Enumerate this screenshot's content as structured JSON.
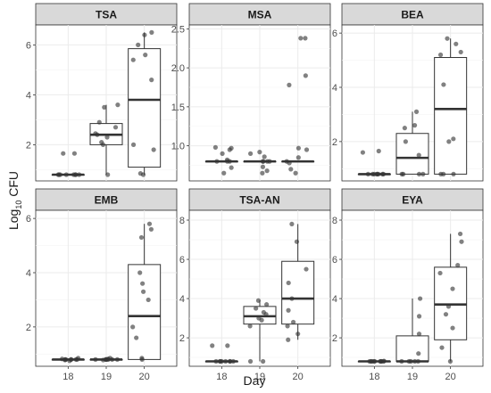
{
  "chart_data": {
    "type": "box",
    "xlabel": "Day",
    "ylabel_main": "Log",
    "ylabel_sub": "10",
    "ylabel_unit": "CFU",
    "categories": [
      "18",
      "19",
      "20"
    ],
    "panels": [
      {
        "name": "TSA",
        "ylim": [
          0.55,
          6.8
        ],
        "yticks": [
          2,
          4,
          6
        ],
        "boxes": [
          {
            "day": "18",
            "min": 0.8,
            "q1": 0.8,
            "median": 0.8,
            "q3": 0.8,
            "max": 0.8
          },
          {
            "day": "19",
            "min": 0.8,
            "q1": 2.0,
            "median": 2.4,
            "q3": 2.85,
            "max": 3.6
          },
          {
            "day": "20",
            "min": 0.8,
            "q1": 1.1,
            "median": 3.8,
            "q3": 5.85,
            "max": 6.5
          }
        ],
        "points": [
          {
            "day": "18",
            "y": [
              0.8,
              0.8,
              0.8,
              0.8,
              0.8,
              0.8,
              0.8,
              0.8,
              1.65,
              1.65
            ]
          },
          {
            "day": "19",
            "y": [
              0.8,
              2.0,
              2.1,
              2.3,
              2.4,
              2.45,
              2.7,
              2.9,
              3.5,
              3.6
            ]
          },
          {
            "day": "20",
            "y": [
              0.8,
              0.85,
              1.8,
              2.0,
              4.6,
              5.4,
              5.6,
              6.0,
              6.4,
              6.5
            ]
          }
        ]
      },
      {
        "name": "MSA",
        "ylim": [
          0.55,
          2.55
        ],
        "yticks": [
          1.0,
          1.5,
          2.0,
          2.5
        ],
        "tick_labels": [
          "1.0",
          "1.5",
          "2.0",
          "2.5"
        ],
        "boxes": [
          {
            "day": "18",
            "min": 0.8,
            "q1": 0.8,
            "median": 0.8,
            "q3": 0.8,
            "max": 0.8
          },
          {
            "day": "19",
            "min": 0.8,
            "q1": 0.8,
            "median": 0.8,
            "q3": 0.8,
            "max": 0.8
          },
          {
            "day": "20",
            "min": 0.8,
            "q1": 0.8,
            "median": 0.8,
            "q3": 0.8,
            "max": 0.8
          }
        ],
        "points": [
          {
            "day": "18",
            "y": [
              0.65,
              0.72,
              0.8,
              0.82,
              0.9,
              0.95,
              0.97,
              0.98,
              0.8,
              0.8
            ]
          },
          {
            "day": "19",
            "y": [
              0.65,
              0.68,
              0.73,
              0.8,
              0.8,
              0.86,
              0.9,
              0.92,
              0.8,
              0.8
            ]
          },
          {
            "day": "20",
            "y": [
              0.65,
              0.7,
              0.78,
              0.8,
              0.85,
              0.95,
              0.97,
              1.78,
              1.9,
              2.38,
              2.38
            ]
          }
        ]
      },
      {
        "name": "BEA",
        "ylim": [
          0.55,
          6.3
        ],
        "yticks": [
          2,
          4,
          6
        ],
        "boxes": [
          {
            "day": "18",
            "min": 0.8,
            "q1": 0.8,
            "median": 0.8,
            "q3": 0.8,
            "max": 0.8
          },
          {
            "day": "19",
            "min": 0.8,
            "q1": 0.8,
            "median": 1.4,
            "q3": 2.3,
            "max": 3.1
          },
          {
            "day": "20",
            "min": 0.8,
            "q1": 0.8,
            "median": 3.2,
            "q3": 5.1,
            "max": 5.8
          }
        ],
        "points": [
          {
            "day": "18",
            "y": [
              0.8,
              0.8,
              0.8,
              0.8,
              0.8,
              0.8,
              0.8,
              0.8,
              1.6,
              1.65
            ]
          },
          {
            "day": "19",
            "y": [
              0.8,
              0.8,
              0.8,
              0.8,
              1.5,
              2.0,
              2.5,
              2.6,
              3.1
            ]
          },
          {
            "day": "20",
            "y": [
              0.8,
              0.8,
              0.8,
              2.0,
              2.1,
              4.1,
              5.2,
              5.3,
              5.6,
              5.8
            ]
          }
        ]
      },
      {
        "name": "EMB",
        "ylim": [
          0.55,
          6.3
        ],
        "yticks": [
          2,
          4,
          6
        ],
        "boxes": [
          {
            "day": "18",
            "min": 0.8,
            "q1": 0.8,
            "median": 0.8,
            "q3": 0.8,
            "max": 0.8
          },
          {
            "day": "19",
            "min": 0.8,
            "q1": 0.8,
            "median": 0.8,
            "q3": 0.8,
            "max": 0.8
          },
          {
            "day": "20",
            "min": 0.8,
            "q1": 0.8,
            "median": 2.4,
            "q3": 4.3,
            "max": 5.8
          }
        ],
        "points": [
          {
            "day": "18",
            "y": [
              0.75,
              0.8,
              0.8,
              0.8,
              0.85,
              0.8,
              0.82,
              0.8,
              0.78,
              0.8
            ]
          },
          {
            "day": "19",
            "y": [
              0.78,
              0.8,
              0.8,
              0.8,
              0.8,
              0.82,
              0.8,
              0.8,
              0.8,
              0.85
            ]
          },
          {
            "day": "20",
            "y": [
              0.8,
              0.85,
              1.6,
              2.0,
              3.0,
              3.3,
              3.6,
              4.0,
              5.3,
              5.6,
              5.8
            ]
          }
        ]
      },
      {
        "name": "TSA-AN",
        "ylim": [
          0.55,
          8.5
        ],
        "yticks": [
          2,
          4,
          6,
          8
        ],
        "boxes": [
          {
            "day": "18",
            "min": 0.8,
            "q1": 0.8,
            "median": 0.8,
            "q3": 0.8,
            "max": 0.8
          },
          {
            "day": "19",
            "min": 0.8,
            "q1": 2.7,
            "median": 3.1,
            "q3": 3.6,
            "max": 3.9
          },
          {
            "day": "20",
            "min": 1.9,
            "q1": 2.7,
            "median": 4.0,
            "q3": 5.9,
            "max": 7.8
          }
        ],
        "points": [
          {
            "day": "18",
            "y": [
              0.8,
              0.8,
              0.8,
              0.8,
              0.8,
              0.8,
              0.8,
              0.8,
              1.6,
              1.6
            ]
          },
          {
            "day": "19",
            "y": [
              0.8,
              0.8,
              2.6,
              2.9,
              3.0,
              3.2,
              3.3,
              3.5,
              3.7,
              3.9
            ]
          },
          {
            "day": "20",
            "y": [
              1.9,
              2.2,
              2.6,
              2.8,
              3.4,
              4.0,
              4.8,
              5.5,
              6.9,
              7.8
            ]
          }
        ]
      },
      {
        "name": "EYA",
        "ylim": [
          0.55,
          8.5
        ],
        "yticks": [
          2,
          4,
          6,
          8
        ],
        "boxes": [
          {
            "day": "18",
            "min": 0.8,
            "q1": 0.8,
            "median": 0.8,
            "q3": 0.8,
            "max": 0.8
          },
          {
            "day": "19",
            "min": 0.8,
            "q1": 0.8,
            "median": 0.8,
            "q3": 2.1,
            "max": 4.0
          },
          {
            "day": "20",
            "min": 0.8,
            "q1": 1.9,
            "median": 3.7,
            "q3": 5.6,
            "max": 7.3
          }
        ],
        "points": [
          {
            "day": "18",
            "y": [
              0.8,
              0.8,
              0.8,
              0.8,
              0.8,
              0.8,
              0.8,
              0.8,
              0.8,
              0.82
            ]
          },
          {
            "day": "19",
            "y": [
              0.8,
              0.8,
              0.8,
              0.8,
              0.8,
              1.2,
              2.2,
              3.1,
              4.0
            ]
          },
          {
            "day": "20",
            "y": [
              0.8,
              1.5,
              2.5,
              3.2,
              3.6,
              4.5,
              5.3,
              5.7,
              6.9,
              7.3
            ]
          }
        ]
      }
    ]
  }
}
